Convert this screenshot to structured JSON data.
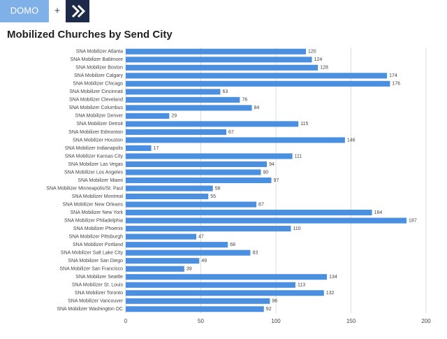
{
  "header": {
    "brand": "DOMO",
    "joiner": "+"
  },
  "chart_data": {
    "type": "hbar",
    "title": "Mobilized Churches by Send City",
    "categories": [
      "SNA Mobilizer Atlanta",
      "SNA Mobilizer Baltimore",
      "SNA Mobilizer Boston",
      "SNA Mobilizer Calgary",
      "SNA Mobilizer Chicago",
      "SNA Mobilizer Cincinnati",
      "SNA Mobilizer Cleveland",
      "SNA Mobilizer Columbus",
      "SNA Mobilizer Denver",
      "SNA Mobilizer Detroit",
      "SNA Mobilizer Edmonton",
      "SNA Mobilizer Houston",
      "SNA Mobilizer Indianapolis",
      "SNA Mobilizer Kansas City",
      "SNA Mobilizer Las Vegas",
      "SNA Mobilizer Los Angeles",
      "SNA Mobilizer Miami",
      "SNA Mobilizer Minneapolis/St. Paul",
      "SNA Mobilizer Montreal",
      "SNA Mobilizer New Orleans",
      "SNA Mobilizer New York",
      "SNA Mobilizer Philadelphia",
      "SNA Mobilizer Phoenix",
      "SNA Mobilizer Pittsburgh",
      "SNA Mobilizer Portland",
      "SNA Mobilizer Salt Lake City",
      "SNA Mobilizer San Diego",
      "SNA Mobilizer San Francisco",
      "SNA Mobilizer Seattle",
      "SNA Mobilizer St. Louis",
      "SNA Mobilizer Toronto",
      "SNA Mobilizer Vancouver",
      "SNA Mobilizer Washington DC"
    ],
    "values": [
      120,
      124,
      128,
      174,
      176,
      63,
      76,
      84,
      29,
      115,
      67,
      146,
      17,
      111,
      94,
      90,
      97,
      58,
      55,
      87,
      164,
      187,
      110,
      47,
      68,
      83,
      49,
      39,
      134,
      113,
      132,
      96,
      92
    ],
    "color": "#4a8fe0",
    "xlim": [
      0,
      200
    ],
    "xticks": [
      0,
      50,
      100,
      150,
      200
    ],
    "grid": true
  }
}
